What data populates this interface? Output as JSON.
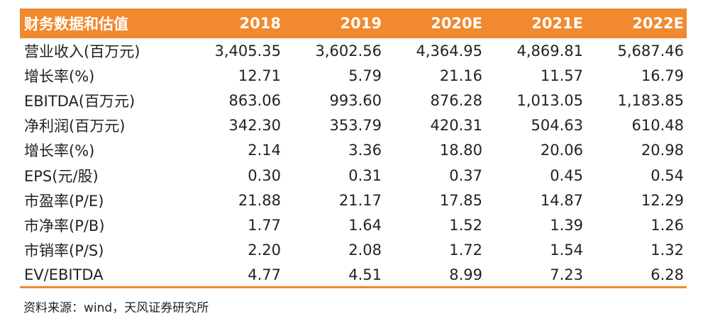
{
  "table": {
    "header": [
      "财务数据和估值",
      "2018",
      "2019",
      "2020E",
      "2021E",
      "2022E"
    ],
    "rows": [
      [
        "营业收入(百万元)",
        "3,405.35",
        "3,602.56",
        "4,364.95",
        "4,869.81",
        "5,687.46"
      ],
      [
        "增长率(%)",
        "12.71",
        "5.79",
        "21.16",
        "11.57",
        "16.79"
      ],
      [
        "EBITDA(百万元)",
        "863.06",
        "993.60",
        "876.28",
        "1,013.05",
        "1,183.85"
      ],
      [
        "净利润(百万元)",
        "342.30",
        "353.79",
        "420.31",
        "504.63",
        "610.48"
      ],
      [
        "增长率(%)",
        "2.14",
        "3.36",
        "18.80",
        "20.06",
        "20.98"
      ],
      [
        "EPS(元/股)",
        "0.30",
        "0.31",
        "0.37",
        "0.45",
        "0.54"
      ],
      [
        "市盈率(P/E)",
        "21.88",
        "21.17",
        "17.85",
        "14.87",
        "12.29"
      ],
      [
        "市净率(P/B)",
        "1.77",
        "1.64",
        "1.52",
        "1.39",
        "1.26"
      ],
      [
        "市销率(P/S)",
        "2.20",
        "2.08",
        "1.72",
        "1.54",
        "1.32"
      ],
      [
        "EV/EBITDA",
        "4.77",
        "4.51",
        "8.99",
        "7.23",
        "6.28"
      ]
    ]
  },
  "source": "资料来源：wind，天风证券研究所",
  "colors": {
    "header_bg": "#f0892f",
    "header_text": "#ffffff",
    "rule": "#f0892f",
    "body_text": "#222222"
  }
}
